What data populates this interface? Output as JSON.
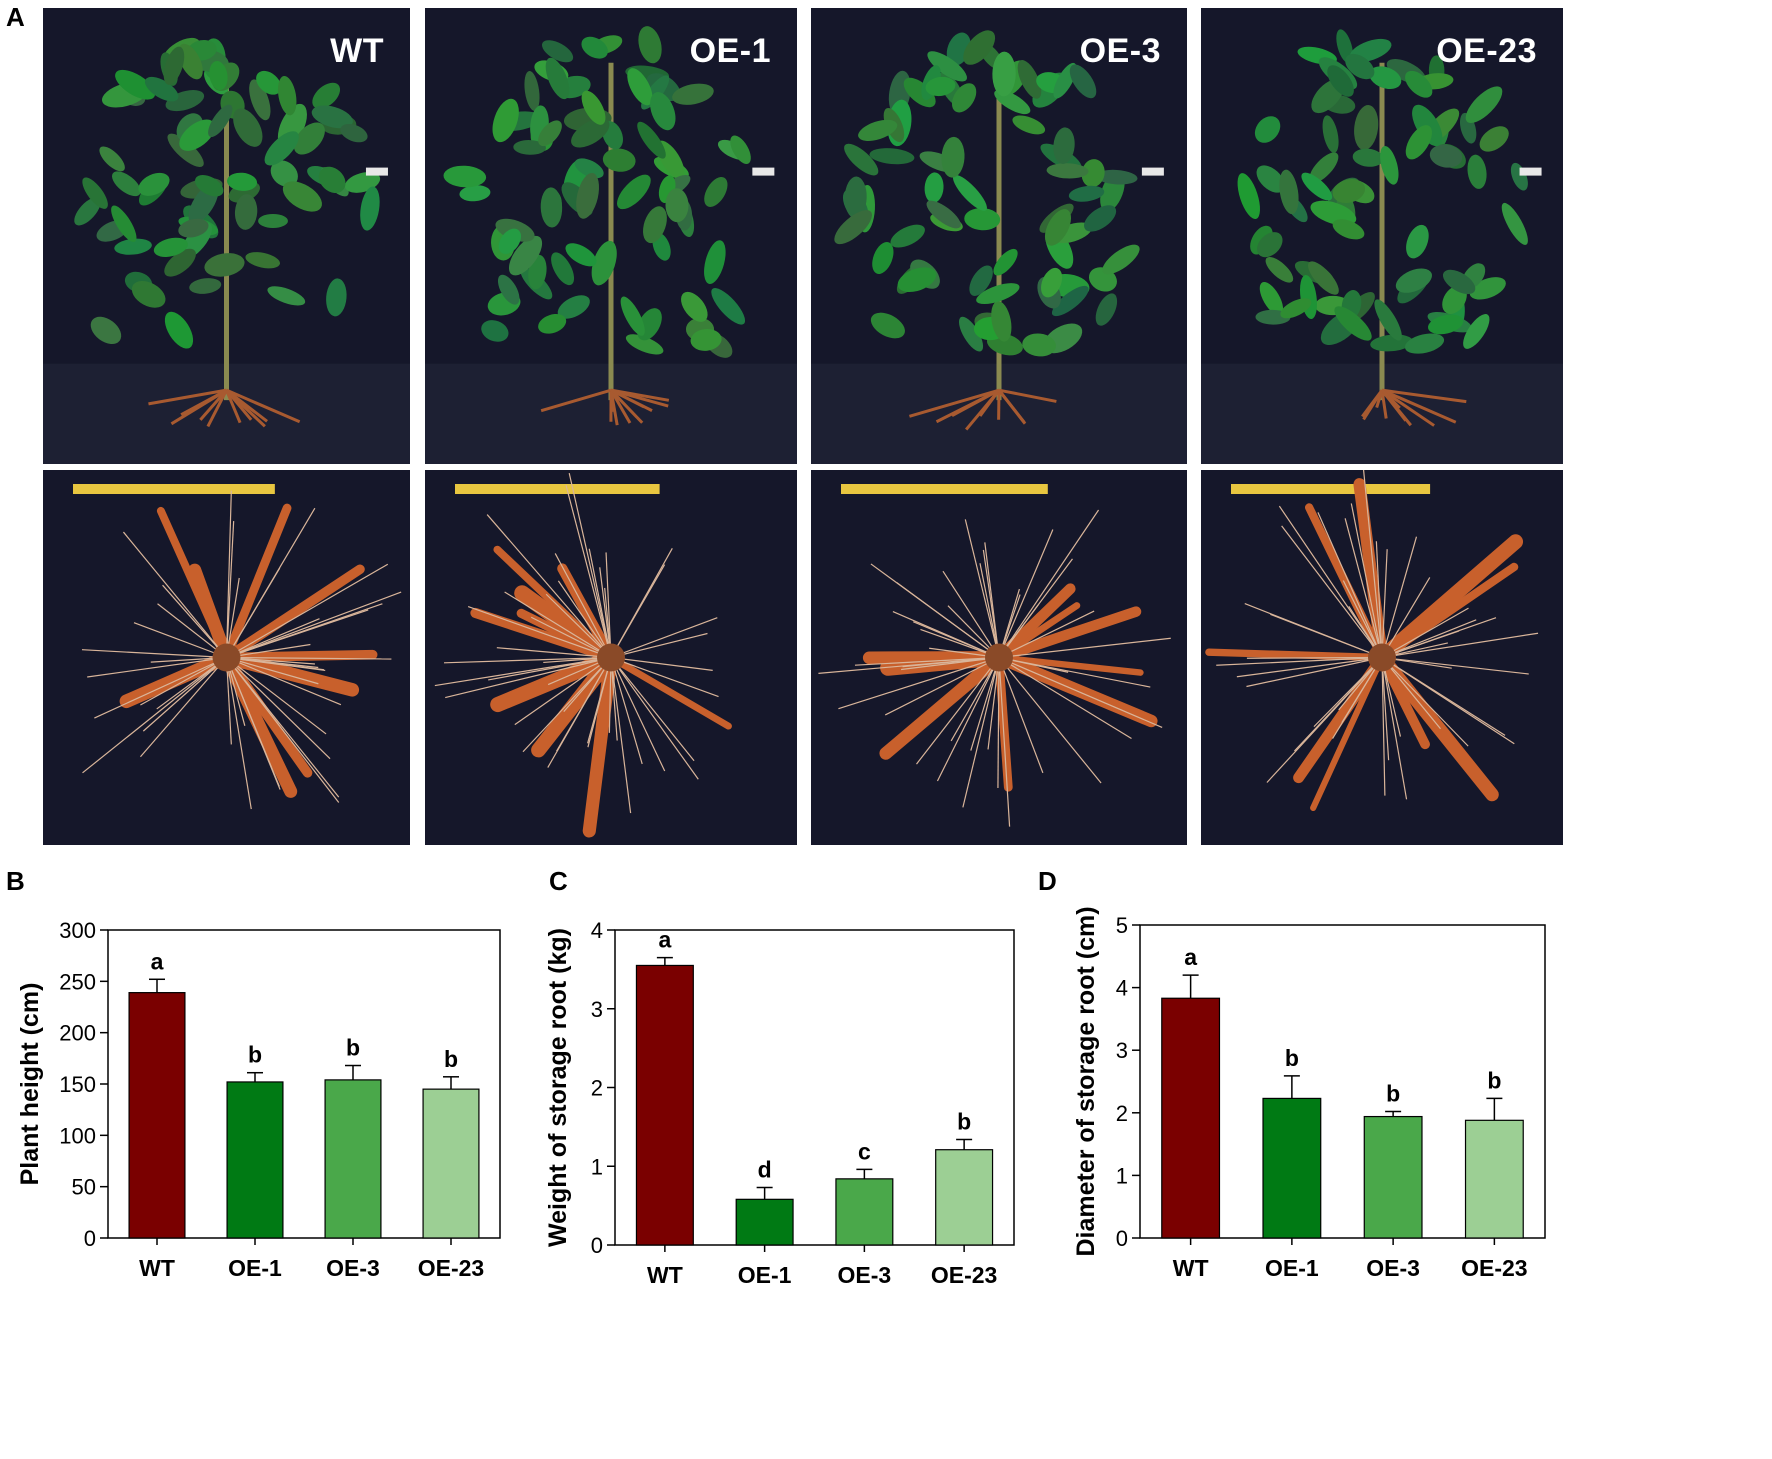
{
  "panel_a": {
    "letter": "A",
    "photos": [
      {
        "label": "WT",
        "scene": "shoot"
      },
      {
        "label": "OE-1",
        "scene": "shoot"
      },
      {
        "label": "OE-3",
        "scene": "shoot"
      },
      {
        "label": "OE-23",
        "scene": "shoot"
      },
      {
        "label": "",
        "scene": "root"
      },
      {
        "label": "",
        "scene": "root"
      },
      {
        "label": "",
        "scene": "root"
      },
      {
        "label": "",
        "scene": "root"
      }
    ]
  },
  "colors": {
    "wt": "#7a0000",
    "oe1": "#007a14",
    "oe3": "#4aa84a",
    "oe23": "#9ccf94",
    "photo_bg": "#15172a",
    "leaf": "#2f8a3a",
    "root": "#c8602c"
  },
  "chart_data": [
    {
      "letter": "B",
      "type": "bar",
      "categories": [
        "WT",
        "OE-1",
        "OE-3",
        "OE-23"
      ],
      "values": [
        239,
        152,
        154,
        145
      ],
      "errors": [
        13,
        9,
        14,
        12
      ],
      "significance": [
        "a",
        "b",
        "b",
        "b"
      ],
      "ylabel": "Plant height (cm)",
      "ylim": [
        0,
        300
      ],
      "yticks": [
        "0",
        "50",
        "100",
        "150",
        "200",
        "250",
        "300"
      ]
    },
    {
      "letter": "C",
      "type": "bar",
      "categories": [
        "WT",
        "OE-1",
        "OE-3",
        "OE-23"
      ],
      "values": [
        3.55,
        0.58,
        0.84,
        1.21
      ],
      "errors": [
        0.1,
        0.15,
        0.12,
        0.13
      ],
      "significance": [
        "a",
        "d",
        "c",
        "b"
      ],
      "ylabel": "Weight of storage root (kg)",
      "ylim": [
        0,
        4
      ],
      "yticks": [
        "0",
        "1",
        "2",
        "3",
        "4"
      ]
    },
    {
      "letter": "D",
      "type": "bar",
      "categories": [
        "WT",
        "OE-1",
        "OE-3",
        "OE-23"
      ],
      "values": [
        3.83,
        2.23,
        1.94,
        1.88
      ],
      "errors": [
        0.37,
        0.36,
        0.08,
        0.35
      ],
      "significance": [
        "a",
        "b",
        "b",
        "b"
      ],
      "ylabel": "Diameter of storage root (cm)",
      "ylim": [
        0,
        5
      ],
      "yticks": [
        "0",
        "1",
        "2",
        "3",
        "4",
        "5"
      ]
    }
  ]
}
